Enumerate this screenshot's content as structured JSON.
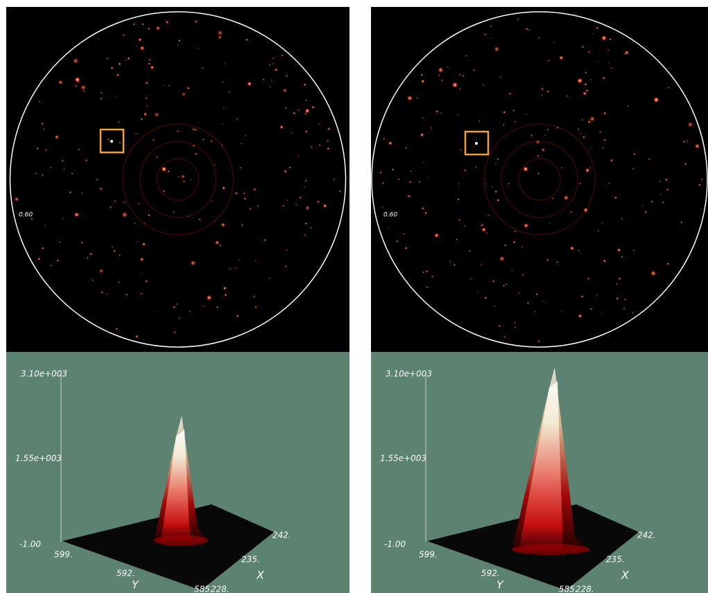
{
  "panels": [
    {
      "resolution_label": "0.60",
      "plot": {
        "z_ticks": [
          "3.10e+003",
          "1.55e+003",
          "-1.00"
        ],
        "y_ticks": [
          "599.",
          "592.",
          "585."
        ],
        "x_ticks": [
          "228.",
          "235.",
          "242."
        ],
        "y_label": "Y",
        "x_label": "X"
      }
    },
    {
      "resolution_label": "0.60",
      "plot": {
        "z_ticks": [
          "3.10e+003",
          "1.55e+003",
          "-1.00"
        ],
        "y_ticks": [
          "599.",
          "592.",
          "585."
        ],
        "x_ticks": [
          "228.",
          "235.",
          "242."
        ],
        "y_label": "Y",
        "x_label": "X"
      }
    }
  ]
}
